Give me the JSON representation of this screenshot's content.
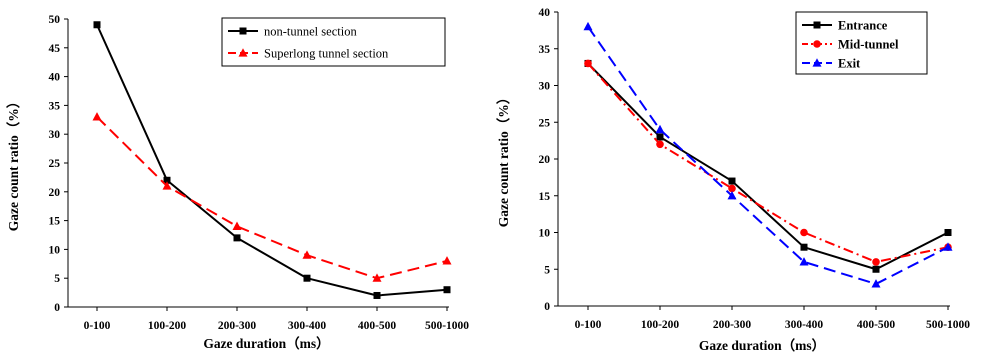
{
  "chart_data": [
    {
      "type": "line",
      "title": "",
      "xlabel": "Gaze duration（ms）",
      "ylabel": "Gaze count ratio（%）",
      "categories": [
        "0-100",
        "100-200",
        "200-300",
        "300-400",
        "400-500",
        "500-1000"
      ],
      "ylim": [
        0,
        50
      ],
      "yticks": [
        "0",
        "5",
        "10",
        "15",
        "20",
        "25",
        "30",
        "35",
        "40",
        "45",
        "50"
      ],
      "grid": false,
      "legend_position": "top-right",
      "series": [
        {
          "name": "non-tunnel section",
          "values": [
            49,
            22,
            12,
            5,
            2,
            3
          ],
          "color": "#000000",
          "dash": "solid",
          "marker": "square"
        },
        {
          "name": "Superlong tunnel section",
          "values": [
            33,
            21,
            14,
            9,
            5,
            8
          ],
          "color": "#ff0000",
          "dash": "dashed",
          "marker": "triangle"
        }
      ]
    },
    {
      "type": "line",
      "title": "",
      "xlabel": "Gaze duration（ms）",
      "ylabel": "Gaze count ratio（%）",
      "categories": [
        "0-100",
        "100-200",
        "200-300",
        "300-400",
        "400-500",
        "500-1000"
      ],
      "ylim": [
        0,
        40
      ],
      "yticks": [
        "0",
        "5",
        "10",
        "15",
        "20",
        "25",
        "30",
        "35",
        "40"
      ],
      "grid": false,
      "legend_position": "top-right",
      "series": [
        {
          "name": "Entrance",
          "values": [
            33,
            23,
            17,
            8,
            5,
            10
          ],
          "color": "#000000",
          "dash": "solid",
          "marker": "square"
        },
        {
          "name": "Mid-tunnel",
          "values": [
            33,
            22,
            16,
            10,
            6,
            8
          ],
          "color": "#ff0000",
          "dash": "dashdot",
          "marker": "circle"
        },
        {
          "name": "Exit",
          "values": [
            38,
            24,
            15,
            6,
            3,
            8
          ],
          "color": "#0000ff",
          "dash": "dashed",
          "marker": "triangle"
        }
      ]
    }
  ]
}
